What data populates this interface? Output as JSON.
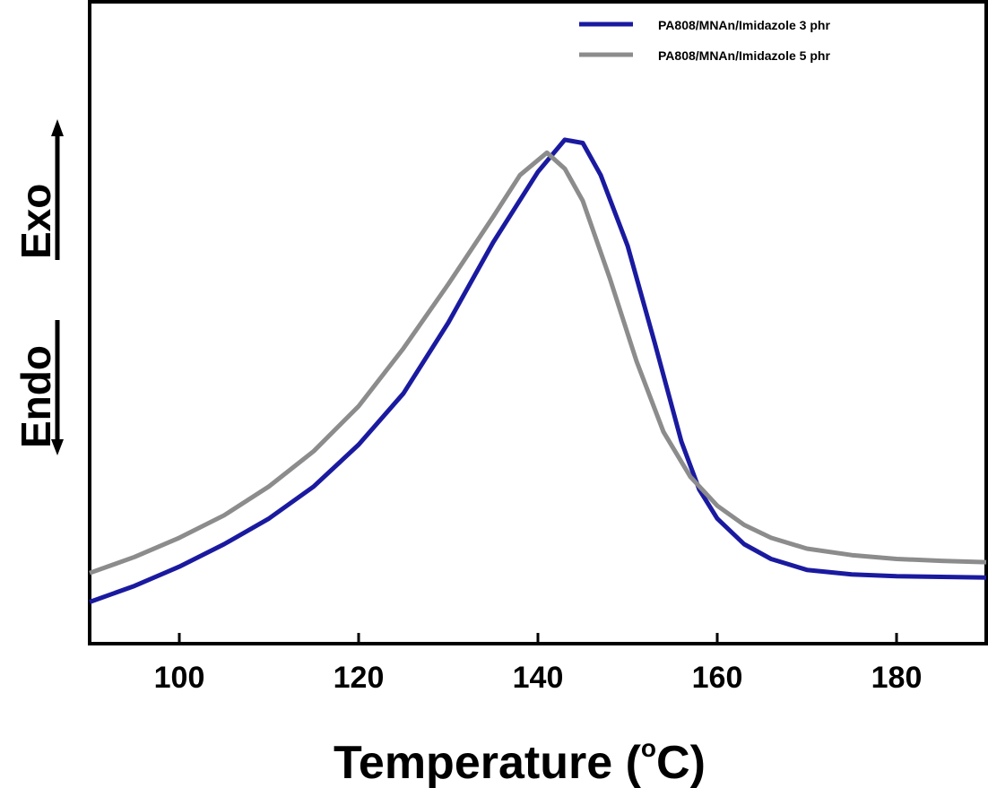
{
  "chart_data": {
    "type": "line",
    "title": "",
    "xlabel_main": "Temperature (",
    "xlabel_degree": "o",
    "xlabel_unit": "C)",
    "ylabel_exo": "Exo",
    "ylabel_endo": "Endo",
    "xlim": [
      90,
      190
    ],
    "ylim": [
      0,
      100
    ],
    "xticks": [
      100,
      120,
      140,
      160,
      180
    ],
    "xtick_labels": [
      "100",
      "120",
      "140",
      "160",
      "180"
    ],
    "grid": false,
    "legend_position": "top-right",
    "series": [
      {
        "name": "PA808/MNAn/Imidazole 3 phr",
        "color": "#1a1aa0",
        "points": [
          [
            90,
            6.5
          ],
          [
            95,
            9
          ],
          [
            100,
            12
          ],
          [
            105,
            15.5
          ],
          [
            110,
            19.5
          ],
          [
            115,
            24.5
          ],
          [
            120,
            31
          ],
          [
            125,
            39
          ],
          [
            130,
            50
          ],
          [
            135,
            62.5
          ],
          [
            140,
            73.5
          ],
          [
            143,
            78.5
          ],
          [
            145,
            78
          ],
          [
            147,
            73
          ],
          [
            150,
            62
          ],
          [
            153,
            47
          ],
          [
            156,
            31.5
          ],
          [
            158,
            24
          ],
          [
            160,
            19.5
          ],
          [
            163,
            15.5
          ],
          [
            166,
            13.2
          ],
          [
            170,
            11.5
          ],
          [
            175,
            10.8
          ],
          [
            180,
            10.5
          ],
          [
            185,
            10.4
          ],
          [
            190,
            10.3
          ]
        ]
      },
      {
        "name": "PA808/MNAn/Imidazole 5 phr",
        "color": "#8c8c8c",
        "points": [
          [
            90,
            11
          ],
          [
            95,
            13.5
          ],
          [
            100,
            16.5
          ],
          [
            105,
            20
          ],
          [
            110,
            24.5
          ],
          [
            115,
            30
          ],
          [
            120,
            37
          ],
          [
            125,
            46
          ],
          [
            130,
            56
          ],
          [
            135,
            66.5
          ],
          [
            138,
            73
          ],
          [
            141,
            76.5
          ],
          [
            143,
            74
          ],
          [
            145,
            69
          ],
          [
            148,
            57
          ],
          [
            151,
            44
          ],
          [
            154,
            33
          ],
          [
            157,
            26
          ],
          [
            160,
            21.5
          ],
          [
            163,
            18.5
          ],
          [
            166,
            16.5
          ],
          [
            170,
            14.8
          ],
          [
            175,
            13.8
          ],
          [
            180,
            13.2
          ],
          [
            185,
            12.9
          ],
          [
            190,
            12.7
          ]
        ]
      }
    ]
  }
}
